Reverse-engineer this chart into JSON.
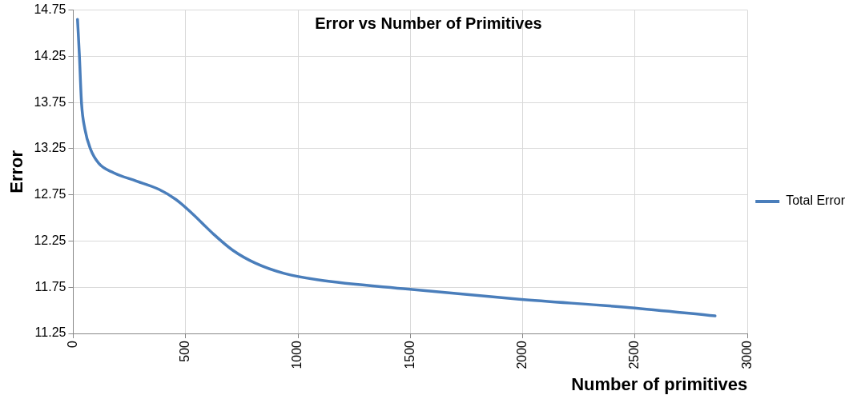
{
  "chart_data": {
    "type": "line",
    "title": "Error vs Number of Primitives",
    "xlabel": "Number of primitives",
    "ylabel": "Error",
    "x": [
      19,
      27,
      37,
      52,
      76,
      114,
      179,
      280,
      381,
      457,
      533,
      622,
      710,
      811,
      938,
      1090,
      1489,
      1985,
      2477,
      2856
    ],
    "series": [
      {
        "name": "Total Error",
        "color": "#4a7ebb",
        "values": [
          14.65,
          14.28,
          13.74,
          13.46,
          13.25,
          13.09,
          12.99,
          12.9,
          12.81,
          12.7,
          12.54,
          12.33,
          12.15,
          12.01,
          11.9,
          11.83,
          11.73,
          11.62,
          11.53,
          11.44
        ]
      }
    ],
    "xlim": [
      0,
      3000
    ],
    "xticks": [
      0,
      500,
      1000,
      1500,
      2000,
      2500,
      3000
    ],
    "ylim": [
      11.25,
      14.75
    ],
    "yticks": [
      11.25,
      11.75,
      12.25,
      12.75,
      13.25,
      13.75,
      14.25,
      14.75
    ],
    "grid": true,
    "legend": "right",
    "marker": "none",
    "line_style": "solid"
  }
}
